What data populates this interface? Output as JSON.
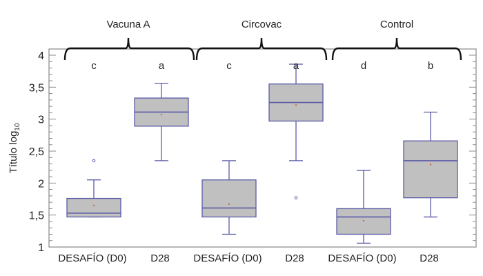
{
  "chart_data": {
    "type": "boxplot",
    "ylabel": "Título log",
    "ylabel_subscript": "10",
    "ylim": [
      1,
      4
    ],
    "yticks": [
      1,
      1.5,
      2,
      2.5,
      3,
      3.5,
      4
    ],
    "ytick_labels": [
      "1",
      "1,5",
      "2",
      "2,5",
      "3",
      "3,5",
      "4"
    ],
    "groups": [
      {
        "label": "Vacuna A",
        "members": [
          0,
          1
        ]
      },
      {
        "label": "Circovac",
        "members": [
          2,
          3
        ]
      },
      {
        "label": "Control",
        "members": [
          4,
          5
        ]
      }
    ],
    "categories": [
      "DESAFÍO (D0)",
      "D28",
      "DESAFÍO (D0)",
      "D28",
      "DESAFÍO (D0)",
      "D28"
    ],
    "boxes": [
      {
        "min": 1.47,
        "q1": 1.47,
        "median": 1.53,
        "q3": 1.76,
        "max": 2.05,
        "mean": 1.65,
        "outliers": [
          2.35
        ],
        "letter": "c"
      },
      {
        "min": 2.35,
        "q1": 2.89,
        "median": 3.11,
        "q3": 3.33,
        "max": 3.56,
        "mean": 3.07,
        "outliers": [],
        "letter": "a"
      },
      {
        "min": 1.2,
        "q1": 1.47,
        "median": 1.61,
        "q3": 2.05,
        "max": 2.35,
        "mean": 1.67,
        "outliers": [],
        "letter": "c"
      },
      {
        "min": 2.35,
        "q1": 2.97,
        "median": 3.26,
        "q3": 3.55,
        "max": 3.86,
        "mean": 3.22,
        "outliers": [
          1.77
        ],
        "letter": "a"
      },
      {
        "min": 1.06,
        "q1": 1.2,
        "median": 1.47,
        "q3": 1.6,
        "max": 2.2,
        "mean": 1.41,
        "outliers": [],
        "letter": "d"
      },
      {
        "min": 1.47,
        "q1": 1.77,
        "median": 2.35,
        "q3": 2.66,
        "max": 3.11,
        "mean": 2.29,
        "outliers": [],
        "letter": "b"
      }
    ],
    "colors": {
      "box_fill": "#c0c0c0",
      "box_stroke": "#5a5aa8",
      "mean_marker": "#c0703a",
      "frame": "#888888",
      "bracket": "#111111"
    },
    "grid": false
  }
}
